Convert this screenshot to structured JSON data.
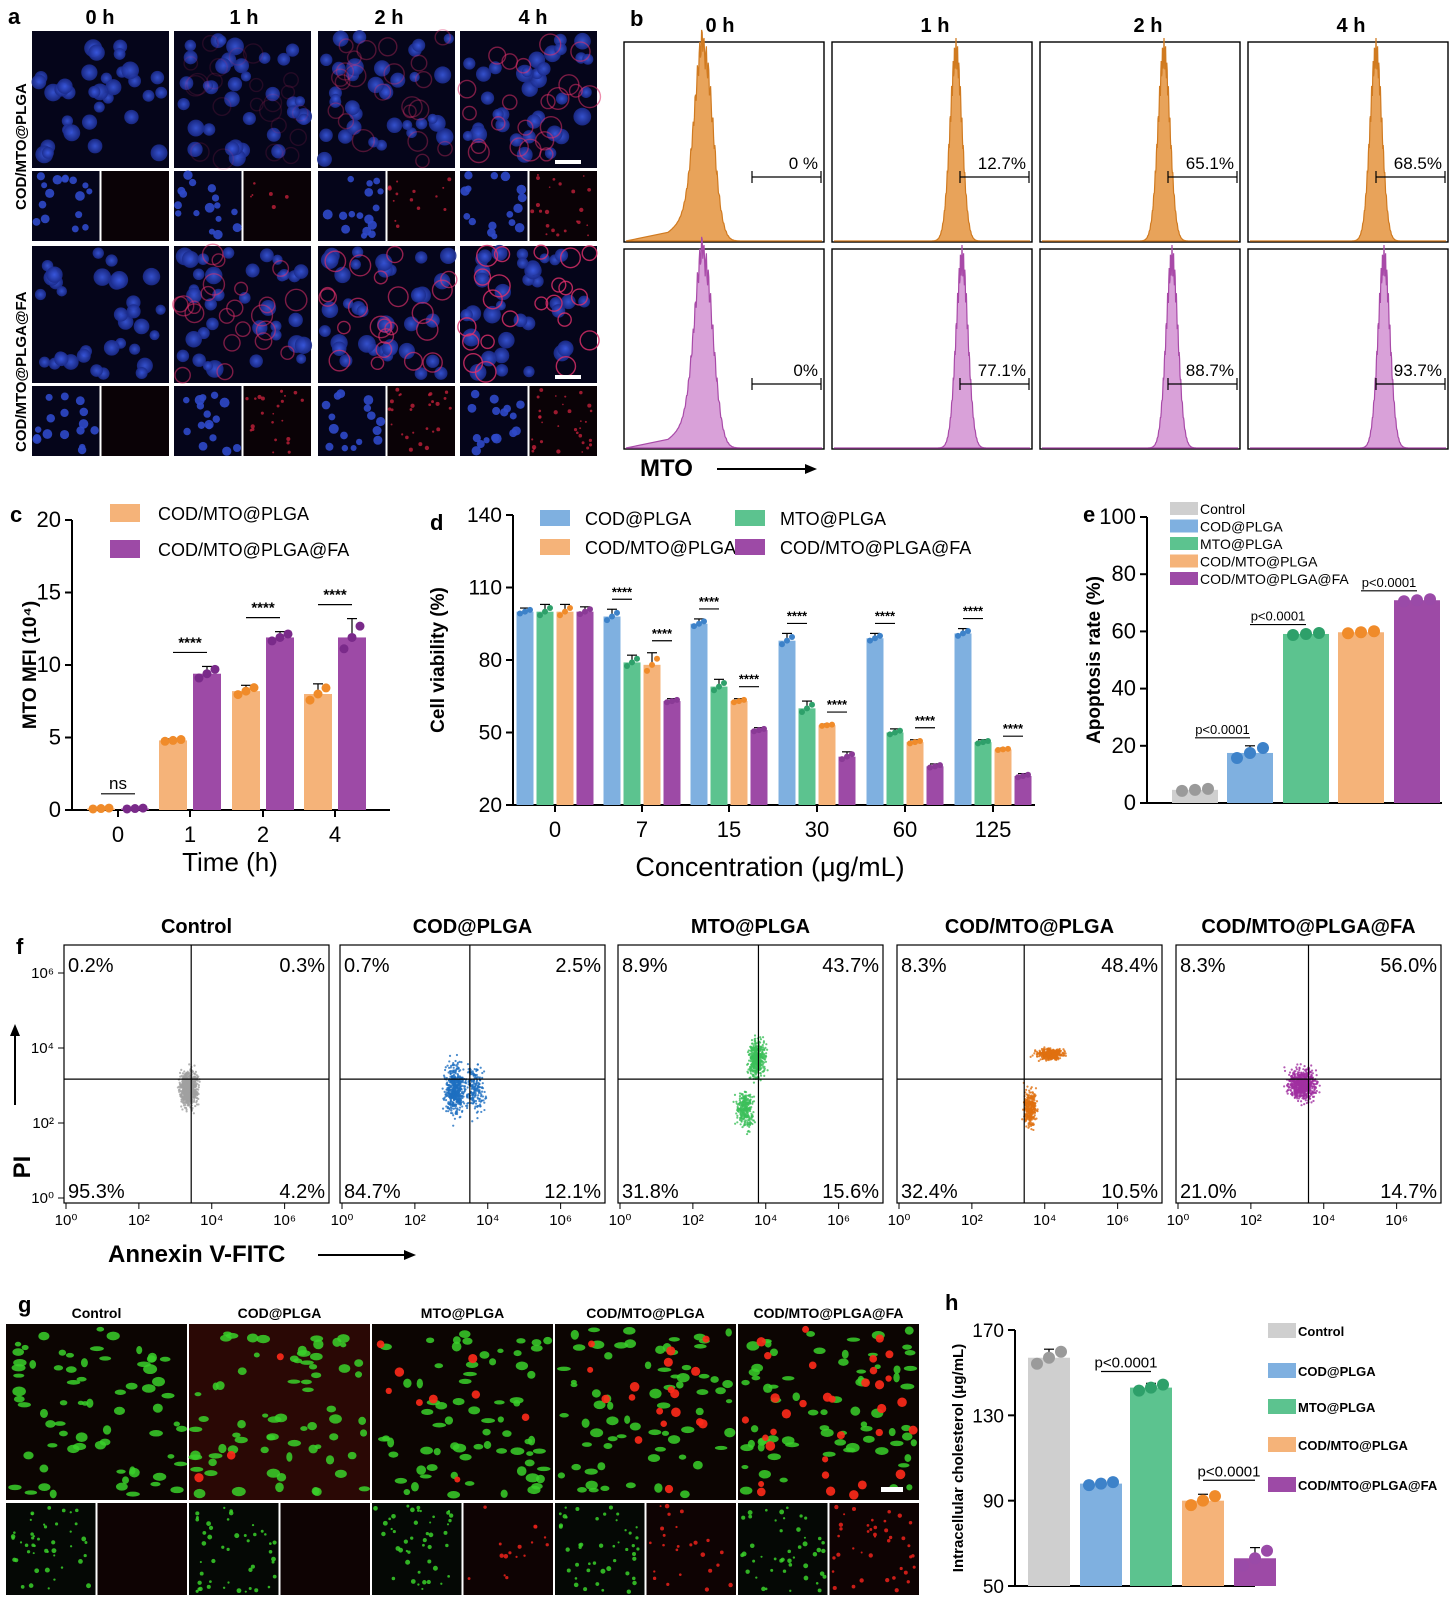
{
  "panel_letters": {
    "a": "a",
    "b": "b",
    "c": "c",
    "d": "d",
    "e": "e",
    "f": "f",
    "g": "g",
    "h": "h"
  },
  "colors": {
    "blue": "#7fb0e0",
    "green": "#5cc38f",
    "orange": "#f5b379",
    "purple": "#9d4aa6",
    "gray": "#cfcfcf",
    "orange_flow": "#e8a35a",
    "pink_flow": "#d9a1d9"
  },
  "panel_a": {
    "time_labels": [
      "0 h",
      "1 h",
      "2 h",
      "4 h"
    ],
    "row_labels": [
      "COD/MTO@PLGA",
      "COD/MTO@PLGA@FA"
    ]
  },
  "panel_b": {
    "time_labels": [
      "0 h",
      "1 h",
      "2 h",
      "4 h"
    ],
    "top_pcts": [
      "0 %",
      "12.7%",
      "65.1%",
      "68.5%"
    ],
    "bottom_pcts": [
      "0%",
      "77.1%",
      "88.7%",
      "93.7%"
    ],
    "axis_label": "MTO"
  },
  "panel_f": {
    "groups": [
      "Control",
      "COD@PLGA",
      "MTO@PLGA",
      "COD/MTO@PLGA",
      "COD/MTO@PLGA@FA"
    ],
    "quadrants": [
      {
        "ul": "0.2%",
        "ur": "0.3%",
        "ll": "95.3%",
        "lr": "4.2%"
      },
      {
        "ul": "0.7%",
        "ur": "2.5%",
        "ll": "84.7%",
        "lr": "12.1%"
      },
      {
        "ul": "8.9%",
        "ur": "43.7%",
        "ll": "31.8%",
        "lr": "15.6%"
      },
      {
        "ul": "8.3%",
        "ur": "48.4%",
        "ll": "32.4%",
        "lr": "10.5%"
      },
      {
        "ul": "8.3%",
        "ur": "56.0%",
        "ll": "21.0%",
        "lr": "14.7%"
      }
    ],
    "x_ticks": [
      "10⁰",
      "10²",
      "10⁴",
      "10⁶"
    ],
    "y_ticks": [
      "10⁰",
      "10²",
      "10⁴",
      "10⁶"
    ],
    "ylabel": "PI",
    "xlabel": "Annexin V-FITC"
  },
  "panel_g": {
    "groups": [
      "Control",
      "COD@PLGA",
      "MTO@PLGA",
      "COD/MTO@PLGA",
      "COD/MTO@PLGA@FA"
    ]
  },
  "chart_data": [
    {
      "id": "c",
      "type": "bar",
      "xlabel": "Time (h)",
      "ylabel": "MTO MFI (10⁴)",
      "categories": [
        "0",
        "1",
        "2",
        "4"
      ],
      "ylim": [
        0,
        20
      ],
      "yticks": [
        0,
        5,
        10,
        15,
        20
      ],
      "series": [
        {
          "name": "COD/MTO@PLGA",
          "values": [
            0.1,
            4.8,
            8.2,
            8.0
          ],
          "errors": [
            0.05,
            0.1,
            0.4,
            0.7
          ]
        },
        {
          "name": "COD/MTO@PLGA@FA",
          "values": [
            0.1,
            9.4,
            11.9,
            11.9
          ],
          "errors": [
            0.05,
            0.5,
            0.4,
            1.3
          ]
        }
      ],
      "significance": [
        "ns",
        "****",
        "****",
        "****"
      ]
    },
    {
      "id": "d",
      "type": "bar",
      "xlabel": "Concentration (μg/mL)",
      "ylabel": "Cell viability (%)",
      "categories": [
        "0",
        "7",
        "15",
        "30",
        "60",
        "125"
      ],
      "ylim": [
        20,
        140
      ],
      "yticks": [
        20,
        50,
        80,
        110,
        140
      ],
      "series": [
        {
          "name": "COD@PLGA",
          "values": [
            100,
            98,
            95,
            88,
            89,
            91
          ],
          "errors": [
            1.5,
            3,
            2,
            3,
            2,
            2
          ]
        },
        {
          "name": "MTO@PLGA",
          "values": [
            100,
            79,
            69,
            60,
            50,
            46
          ],
          "errors": [
            3,
            3,
            3,
            3,
            1.5,
            1
          ]
        },
        {
          "name": "COD/MTO@PLGA",
          "values": [
            100,
            78,
            63,
            53,
            46,
            43
          ],
          "errors": [
            3,
            5,
            1,
            0.5,
            1,
            0.5
          ]
        },
        {
          "name": "COD/MTO@PLGA@FA",
          "values": [
            100,
            63,
            51,
            40,
            36,
            32
          ],
          "errors": [
            2,
            1,
            1,
            2,
            1,
            1
          ]
        }
      ],
      "significance": [
        "****",
        "****"
      ]
    },
    {
      "id": "e",
      "type": "bar",
      "ylabel": "Apoptosis rate (%)",
      "categories": [
        "Control",
        "COD@PLGA",
        "MTO@PLGA",
        "COD/MTO@PLGA",
        "COD/MTO@PLGA@FA"
      ],
      "ylim": [
        0,
        100
      ],
      "yticks": [
        0,
        20,
        40,
        60,
        80,
        100
      ],
      "values": [
        4.6,
        17.5,
        59.1,
        59.7,
        70.9
      ],
      "errors": [
        0.5,
        2.5,
        0.5,
        0.5,
        0.5
      ],
      "pvalue": "p<0.0001"
    },
    {
      "id": "h",
      "type": "bar",
      "ylabel": "Intracellular cholesterol (μg/mL)",
      "categories": [
        "Control",
        "COD@PLGA",
        "MTO@PLGA",
        "COD/MTO@PLGA",
        "COD/MTO@PLGA@FA"
      ],
      "ylim": [
        50,
        170
      ],
      "yticks": [
        50,
        90,
        130,
        170
      ],
      "values": [
        157,
        98,
        143,
        90,
        63
      ],
      "errors": [
        4,
        1,
        2,
        3,
        5
      ],
      "pvalue": "p<0.0001"
    }
  ]
}
